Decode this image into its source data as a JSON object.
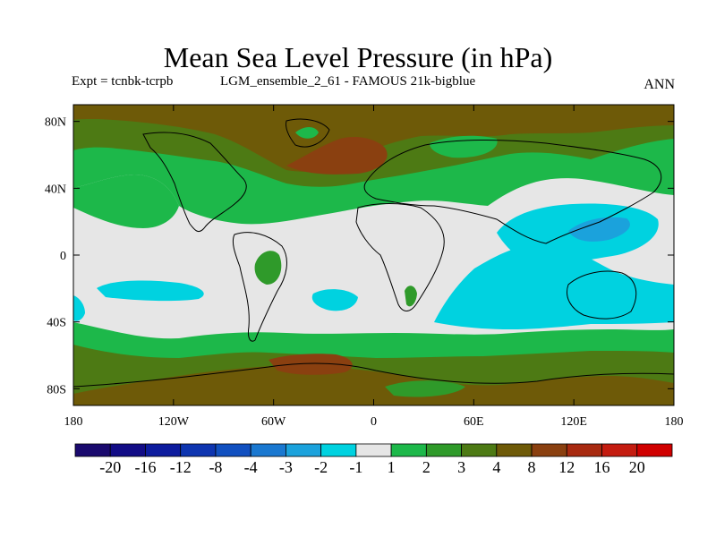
{
  "title": "Mean Sea Level Pressure (in hPa)",
  "subtitle_left": "Expt = tcnbk-tcrpb",
  "subtitle_center": "LGM_ensemble_2_61 - FAMOUS 21k-bigblue",
  "subtitle_right": "ANN",
  "axes": {
    "x_ticks": [
      {
        "value": -180,
        "label": "180"
      },
      {
        "value": -120,
        "label": "120W"
      },
      {
        "value": -60,
        "label": "60W"
      },
      {
        "value": 0,
        "label": "0"
      },
      {
        "value": 60,
        "label": "60E"
      },
      {
        "value": 120,
        "label": "120E"
      },
      {
        "value": 180,
        "label": "180"
      }
    ],
    "y_ticks": [
      {
        "value": 80,
        "label": "80N"
      },
      {
        "value": 40,
        "label": "40N"
      },
      {
        "value": 0,
        "label": "0"
      },
      {
        "value": -40,
        "label": "40S"
      },
      {
        "value": -80,
        "label": "80S"
      }
    ],
    "lon_range": [
      -180,
      180
    ],
    "lat_range": [
      -90,
      90
    ]
  },
  "colorbar": {
    "labels": [
      "-20",
      "-16",
      "-12",
      "-8",
      "-4",
      "-3",
      "-2",
      "-1",
      "1",
      "2",
      "3",
      "4",
      "8",
      "12",
      "16",
      "20"
    ],
    "colors": [
      "#1a0a6e",
      "#120c86",
      "#0d1c9e",
      "#0e35b0",
      "#1150c0",
      "#1a78d0",
      "#1ba2dc",
      "#00d2e0",
      "#e6e6e6",
      "#1db84a",
      "#2f9a2a",
      "#4d7a14",
      "#6e5a08",
      "#8a4010",
      "#a82a10",
      "#c41c10",
      "#d00000"
    ]
  },
  "colors": {
    "land_outline": "#000000",
    "neutral": "#e6e6e6",
    "cyan": "#00d2e0",
    "light_blue": "#1ba2dc",
    "green": "#1db84a",
    "mid_green": "#2f9a2a",
    "olive": "#4d7a14",
    "brown": "#6e5a08",
    "rust": "#8a4010"
  }
}
